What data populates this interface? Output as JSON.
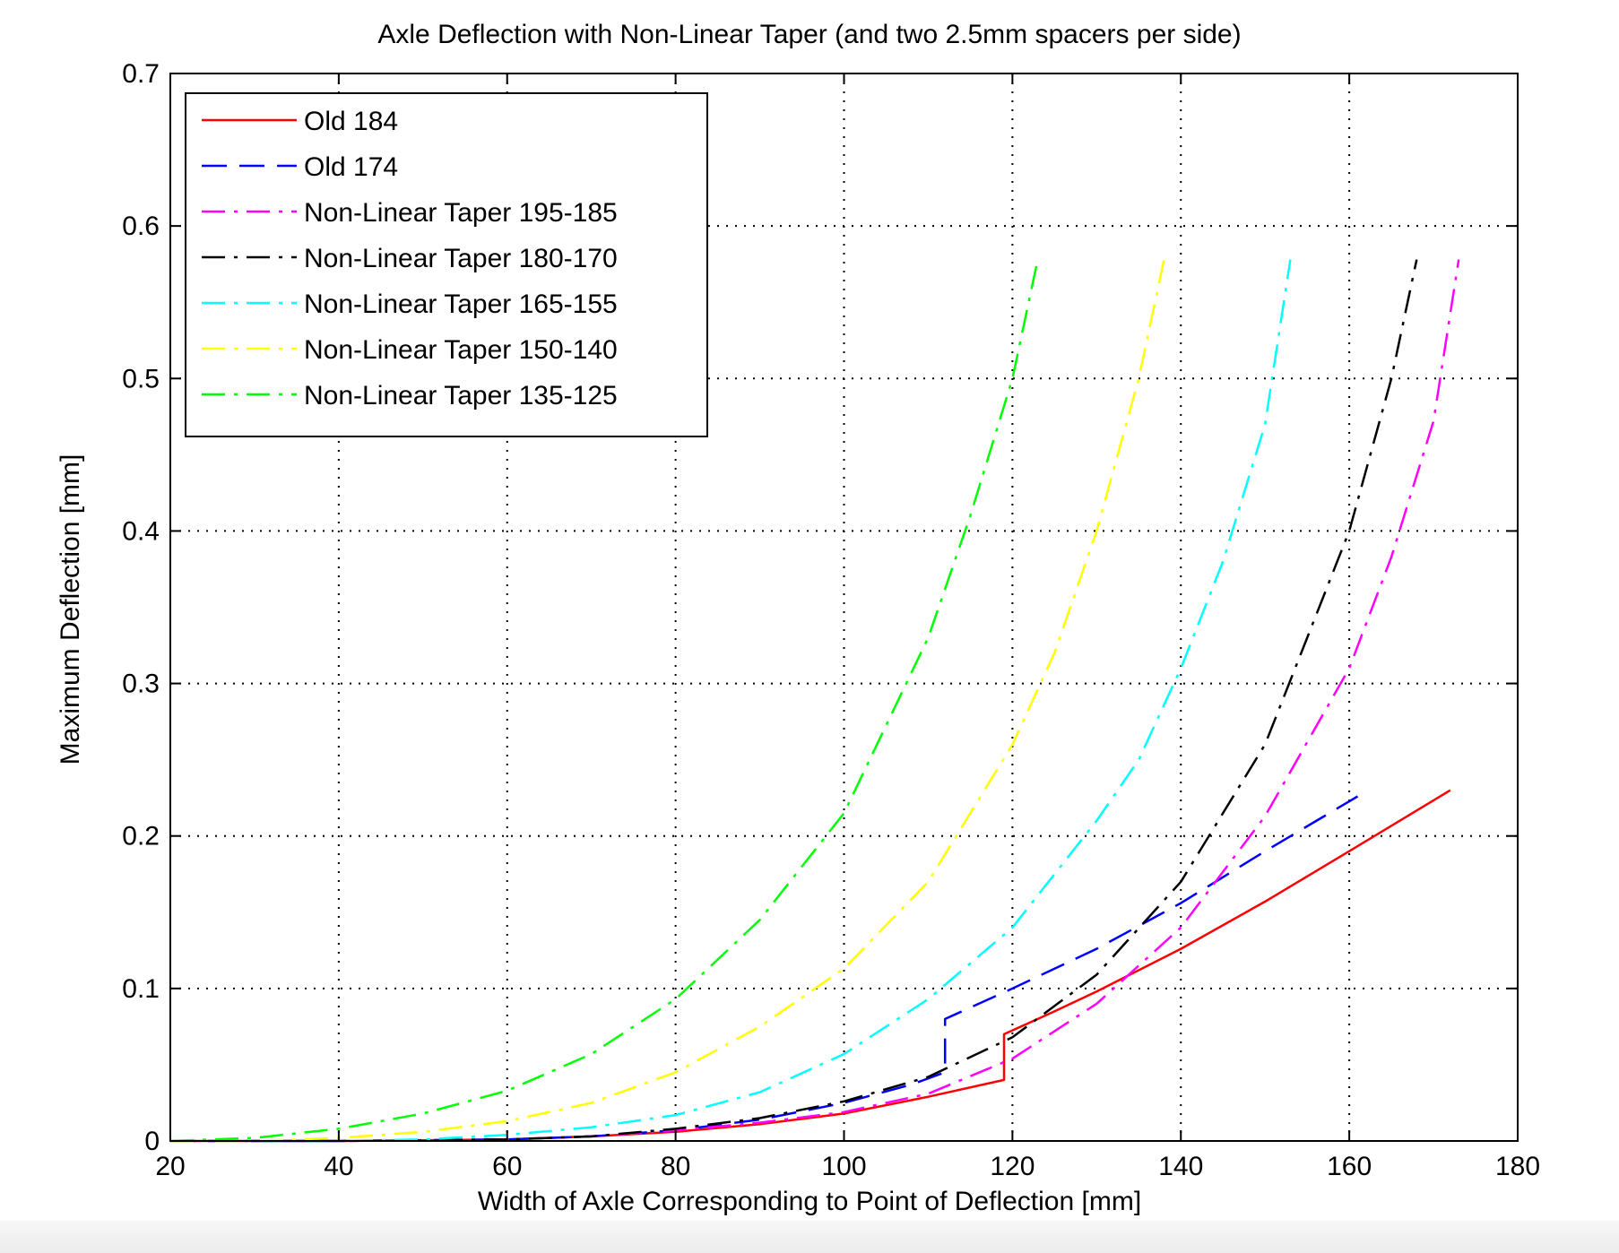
{
  "chart_data": {
    "type": "line",
    "title": "Axle Deflection with Non-Linear Taper (and two 2.5mm spacers per side)",
    "xlabel": "Width of Axle Corresponding to Point of Deflection [mm]",
    "ylabel": "Maximum Deflection [mm]",
    "xlim": [
      20,
      180
    ],
    "ylim": [
      0,
      0.7
    ],
    "xticks": [
      20,
      40,
      60,
      80,
      100,
      120,
      140,
      160,
      180
    ],
    "yticks": [
      0,
      0.1,
      0.2,
      0.3,
      0.4,
      0.5,
      0.6,
      0.7
    ],
    "xtick_labels": [
      "20",
      "40",
      "60",
      "80",
      "100",
      "120",
      "140",
      "160",
      "180"
    ],
    "ytick_labels": [
      "0",
      "0.1",
      "0.2",
      "0.3",
      "0.4",
      "0.5",
      "0.6",
      "0.7"
    ],
    "grid": true,
    "legend_position": "top-left",
    "series": [
      {
        "name": "Old 184",
        "color": "#ff0000",
        "style": "solid",
        "x": [
          20,
          40,
          60,
          70,
          80,
          90,
          100,
          110,
          119,
          119,
          125,
          130,
          140,
          150,
          160,
          172
        ],
        "y": [
          0,
          0,
          0.001,
          0.003,
          0.006,
          0.011,
          0.018,
          0.029,
          0.04,
          0.07,
          0.085,
          0.098,
          0.126,
          0.157,
          0.19,
          0.23
        ]
      },
      {
        "name": "Old 174",
        "color": "#0000ff",
        "style": "dashed",
        "x": [
          20,
          40,
          60,
          70,
          80,
          90,
          100,
          108,
          112,
          112,
          120,
          130,
          140,
          150,
          161
        ],
        "y": [
          0,
          0,
          0.001,
          0.003,
          0.007,
          0.014,
          0.025,
          0.037,
          0.045,
          0.08,
          0.1,
          0.126,
          0.156,
          0.19,
          0.226
        ]
      },
      {
        "name": "Non-Linear Taper 195-185",
        "color": "#ff00ff",
        "style": "dashdot",
        "x": [
          20,
          40,
          60,
          70,
          80,
          90,
          100,
          110,
          120,
          130,
          140,
          150,
          160,
          165,
          170,
          173
        ],
        "y": [
          0,
          0,
          0.001,
          0.003,
          0.007,
          0.012,
          0.019,
          0.031,
          0.054,
          0.09,
          0.14,
          0.213,
          0.31,
          0.383,
          0.472,
          0.578
        ]
      },
      {
        "name": "Non-Linear Taper 180-170",
        "color": "#000000",
        "style": "dashdot",
        "x": [
          20,
          40,
          60,
          70,
          80,
          90,
          100,
          110,
          120,
          130,
          140,
          150,
          155,
          160,
          165,
          168
        ],
        "y": [
          0,
          0,
          0.001,
          0.003,
          0.008,
          0.015,
          0.026,
          0.042,
          0.068,
          0.109,
          0.17,
          0.26,
          0.33,
          0.4,
          0.5,
          0.578
        ]
      },
      {
        "name": "Non-Linear Taper 165-155",
        "color": "#00ffff",
        "style": "dashdot",
        "x": [
          20,
          40,
          50,
          60,
          70,
          80,
          90,
          100,
          110,
          120,
          130,
          135,
          140,
          145,
          150,
          153
        ],
        "y": [
          0,
          0,
          0.001,
          0.004,
          0.009,
          0.017,
          0.032,
          0.057,
          0.093,
          0.14,
          0.21,
          0.25,
          0.31,
          0.38,
          0.47,
          0.578
        ]
      },
      {
        "name": "Non-Linear Taper 150-140",
        "color": "#ffff00",
        "style": "dashdot",
        "x": [
          20,
          30,
          40,
          50,
          60,
          70,
          80,
          90,
          100,
          110,
          120,
          125,
          130,
          135,
          138
        ],
        "y": [
          0,
          0,
          0.002,
          0.006,
          0.013,
          0.025,
          0.045,
          0.075,
          0.113,
          0.17,
          0.26,
          0.32,
          0.4,
          0.5,
          0.578
        ]
      },
      {
        "name": "Non-Linear Taper 135-125",
        "color": "#00ff00",
        "style": "dashdot",
        "x": [
          20,
          30,
          40,
          50,
          60,
          70,
          80,
          90,
          100,
          110,
          115,
          120,
          123
        ],
        "y": [
          0,
          0.002,
          0.008,
          0.018,
          0.033,
          0.057,
          0.093,
          0.145,
          0.215,
          0.33,
          0.41,
          0.5,
          0.578
        ]
      }
    ]
  }
}
